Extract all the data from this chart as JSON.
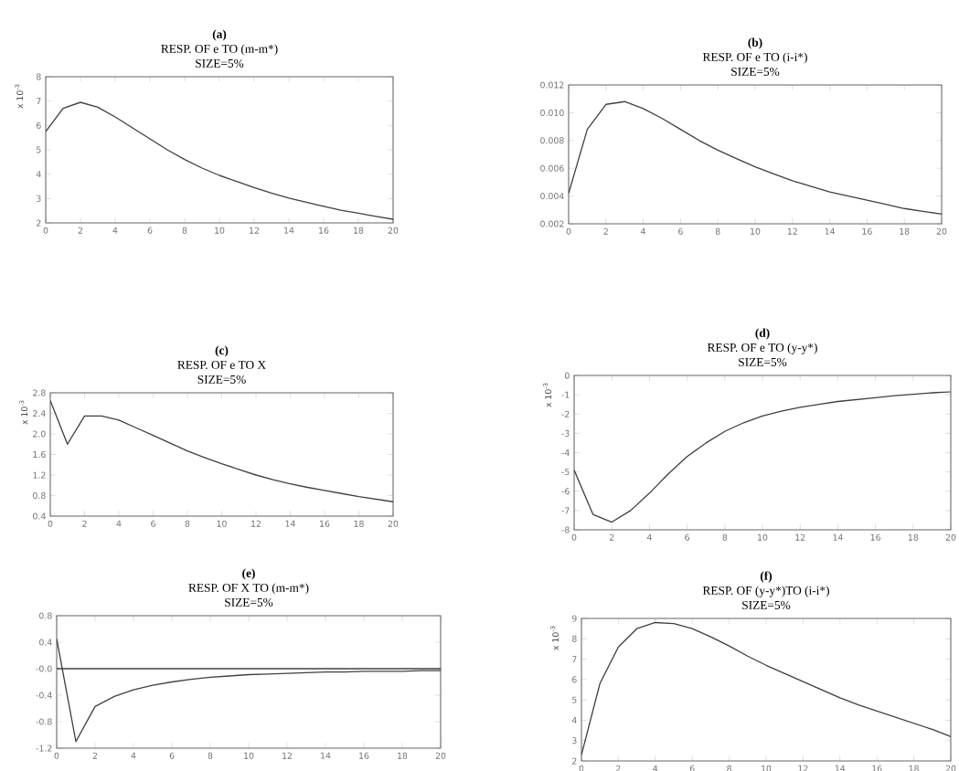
{
  "chart_data": [
    {
      "type": "line",
      "title": "(a)",
      "subtitle": "RESP. OF e TO (m-m*)",
      "annotations": [
        "SIZE=5%"
      ],
      "ylabel": "x 10$^{-3}$",
      "x": [
        0,
        1,
        2,
        3,
        4,
        5,
        6,
        7,
        8,
        9,
        10,
        11,
        12,
        13,
        14,
        15,
        16,
        17,
        18,
        19,
        20
      ],
      "values": [
        5.75,
        6.7,
        6.95,
        6.75,
        6.35,
        5.9,
        5.45,
        5.0,
        4.6,
        4.25,
        3.95,
        3.7,
        3.45,
        3.22,
        3.02,
        2.85,
        2.68,
        2.52,
        2.4,
        2.27,
        2.15
      ],
      "color": "#404040",
      "xlim": [
        0,
        20
      ],
      "xticks": [
        0,
        2,
        4,
        6,
        8,
        10,
        12,
        14,
        16,
        18,
        20
      ],
      "ylim": [
        2,
        8
      ],
      "yticks": [
        2,
        3,
        4,
        5,
        6,
        7,
        8
      ]
    },
    {
      "type": "line",
      "title": "(b)",
      "subtitle": "RESP. OF e TO (i-i*)",
      "annotations": [
        "SIZE=5%"
      ],
      "x": [
        0,
        1,
        2,
        3,
        4,
        5,
        6,
        7,
        8,
        9,
        10,
        11,
        12,
        13,
        14,
        15,
        16,
        17,
        18,
        19,
        20
      ],
      "values": [
        0.0042,
        0.0088,
        0.0106,
        0.0108,
        0.0103,
        0.0096,
        0.0088,
        0.008,
        0.0073,
        0.0067,
        0.0061,
        0.0056,
        0.0051,
        0.0047,
        0.0043,
        0.004,
        0.0037,
        0.0034,
        0.0031,
        0.0029,
        0.0027
      ],
      "color": "#404040",
      "xlim": [
        0,
        20
      ],
      "xticks": [
        0,
        2,
        4,
        6,
        8,
        10,
        12,
        14,
        16,
        18,
        20
      ],
      "ylim": [
        0.002,
        0.012
      ],
      "yticks": [
        0.002,
        0.004,
        0.006,
        0.008,
        {
          "value": 0.01,
          "label": "0.010"
        },
        0.012
      ]
    },
    {
      "type": "line",
      "title": "(c)",
      "subtitle": "RESP. OF e TO X",
      "annotations": [
        "SIZE=5%"
      ],
      "ylabel": "x 10$^{-3}$",
      "x": [
        0,
        1,
        2,
        3,
        4,
        5,
        6,
        7,
        8,
        9,
        10,
        11,
        12,
        13,
        14,
        15,
        16,
        17,
        18,
        19,
        20
      ],
      "values": [
        2.65,
        1.8,
        2.35,
        2.35,
        2.27,
        2.12,
        1.97,
        1.82,
        1.67,
        1.54,
        1.42,
        1.31,
        1.2,
        1.11,
        1.03,
        0.96,
        0.9,
        0.84,
        0.78,
        0.73,
        0.68
      ],
      "color": "#404040",
      "xlim": [
        0,
        20
      ],
      "xticks": [
        0,
        2,
        4,
        6,
        8,
        10,
        12,
        14,
        16,
        18,
        20
      ],
      "ylim": [
        0.4,
        2.8
      ],
      "yticks": [
        0.4,
        0.8,
        1.2,
        1.6,
        {
          "value": 2,
          "label": "2.0"
        },
        2.4,
        2.8
      ]
    },
    {
      "type": "line",
      "title": "(d)",
      "subtitle": "RESP. OF e TO (y-y*)",
      "annotations": [
        "SIZE=5%"
      ],
      "ylabel": "x 10$^{-3}$",
      "x": [
        0,
        1,
        2,
        3,
        4,
        5,
        6,
        7,
        8,
        9,
        10,
        11,
        12,
        13,
        14,
        15,
        16,
        17,
        18,
        19,
        20
      ],
      "values": [
        -4.9,
        -7.2,
        -7.6,
        -7.0,
        -6.1,
        -5.1,
        -4.2,
        -3.5,
        -2.9,
        -2.45,
        -2.1,
        -1.85,
        -1.65,
        -1.5,
        -1.35,
        -1.25,
        -1.15,
        -1.05,
        -0.98,
        -0.9,
        -0.85
      ],
      "color": "#404040",
      "xlim": [
        0,
        20
      ],
      "xticks": [
        0,
        2,
        4,
        6,
        8,
        10,
        12,
        14,
        16,
        18,
        20
      ],
      "ylim": [
        -8,
        0
      ],
      "yticks": [
        -8,
        -7,
        -6,
        -5,
        -4,
        -3,
        -2,
        -1,
        0
      ]
    },
    {
      "type": "line",
      "title": "(e)",
      "subtitle": "RESP. OF  X TO (m-m*)",
      "annotations": [
        "SIZE=5%"
      ],
      "x": [
        0,
        1,
        2,
        3,
        4,
        5,
        6,
        7,
        8,
        9,
        10,
        11,
        12,
        13,
        14,
        15,
        16,
        17,
        18,
        19,
        20
      ],
      "values": [
        0.45,
        -1.1,
        -0.57,
        -0.42,
        -0.32,
        -0.25,
        -0.2,
        -0.16,
        -0.13,
        -0.11,
        -0.09,
        -0.08,
        -0.07,
        -0.06,
        -0.05,
        -0.05,
        -0.04,
        -0.04,
        -0.04,
        -0.03,
        -0.03
      ],
      "color": "#404040",
      "xlim": [
        0,
        20
      ],
      "xticks": [
        0,
        2,
        4,
        6,
        8,
        10,
        12,
        14,
        16,
        18,
        20
      ],
      "ylim": [
        -1.2,
        0.8
      ],
      "yticks": [
        -1.2,
        -0.8,
        -0.4,
        {
          "value": 0,
          "label": "-0.0"
        },
        0.4,
        0.8
      ],
      "ref_lines": [
        {
          "axis": "y",
          "value": 0,
          "color": "#404040"
        }
      ]
    },
    {
      "type": "line",
      "title": "(f)",
      "subtitle": "RESP. OF  (y-y*)TO (i-i*)",
      "annotations": [
        "SIZE=5%"
      ],
      "ylabel": "x 10$^{-3}$",
      "x": [
        0,
        1,
        2,
        3,
        4,
        5,
        6,
        7,
        8,
        9,
        10,
        11,
        12,
        13,
        14,
        15,
        16,
        17,
        18,
        19,
        20
      ],
      "values": [
        2.3,
        5.8,
        7.6,
        8.5,
        8.8,
        8.75,
        8.5,
        8.1,
        7.65,
        7.15,
        6.7,
        6.3,
        5.9,
        5.5,
        5.1,
        4.75,
        4.45,
        4.15,
        3.85,
        3.55,
        3.2
      ],
      "color": "#404040",
      "xlim": [
        0,
        20
      ],
      "xticks": [
        0,
        2,
        4,
        6,
        8,
        10,
        12,
        14,
        16,
        18,
        20
      ],
      "ylim": [
        2,
        9
      ],
      "yticks": [
        2,
        3,
        4,
        5,
        6,
        7,
        8,
        9
      ]
    }
  ]
}
